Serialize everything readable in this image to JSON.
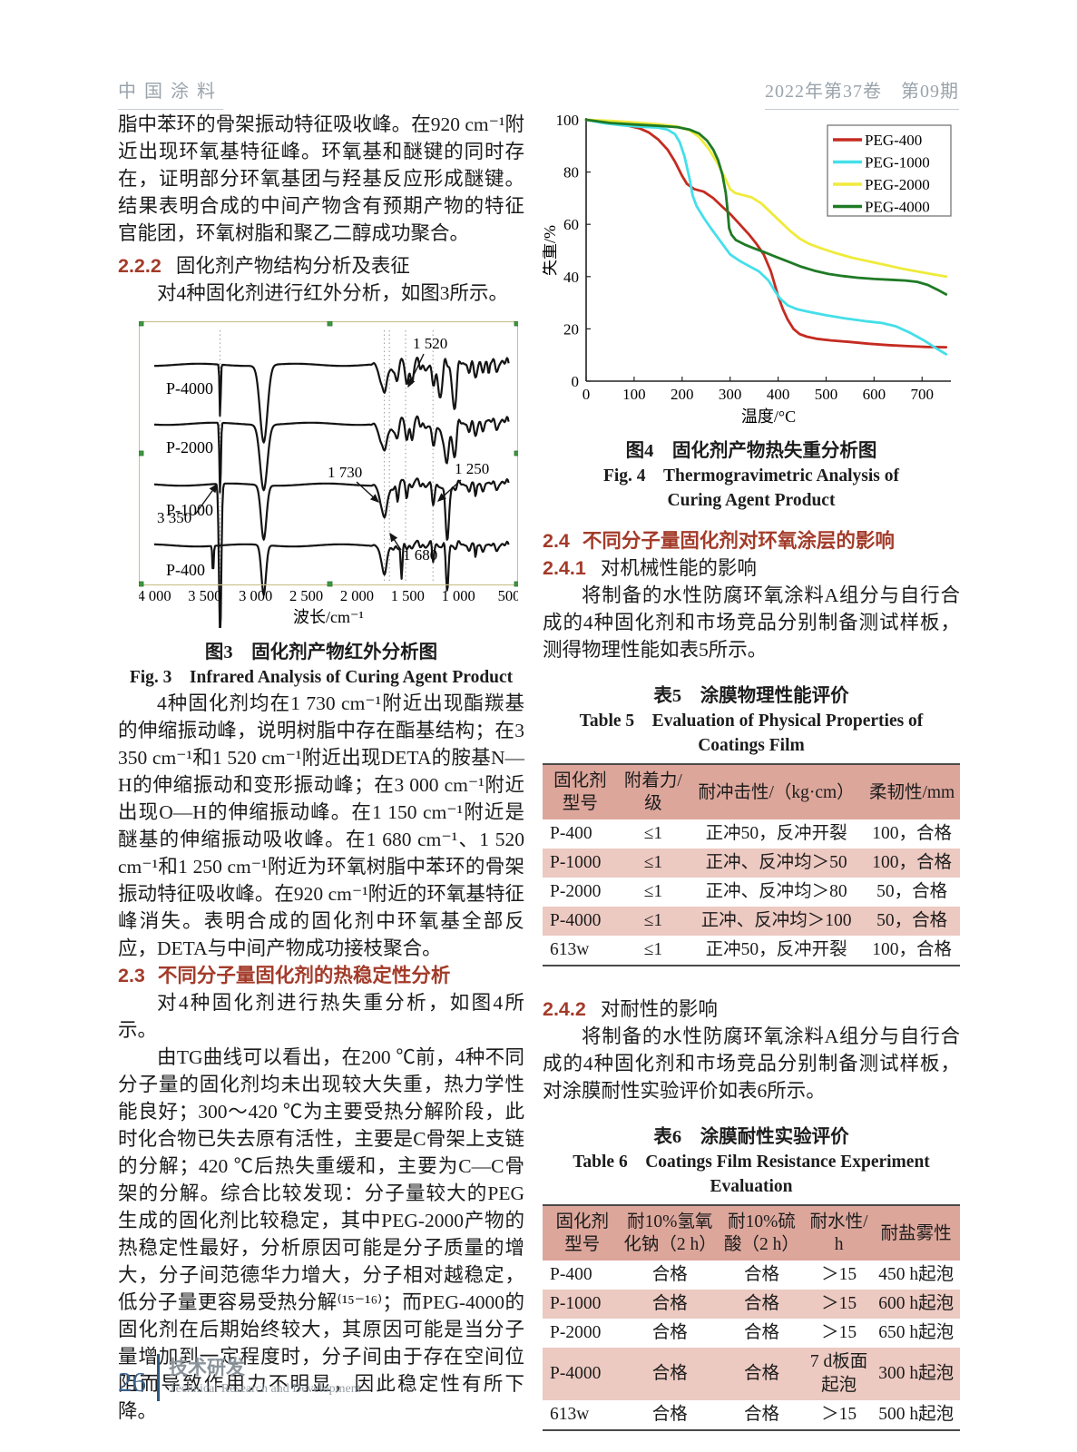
{
  "header": {
    "journal": "中国涂料",
    "issue": "2022年第37卷　第09期"
  },
  "footer": {
    "page_number": "26",
    "section_cn": "技术研发",
    "section_en": "Technical Research and Development"
  },
  "left_column": {
    "para1": "脂中苯环的骨架振动特征吸收峰。在920 cm⁻¹附近出现环氧基特征峰。环氧基和醚键的同时存在，证明部分环氧基团与羟基反应形成醚键。结果表明合成的中间产物含有预期产物的特征官能团，环氧树脂和聚乙二醇成功聚合。",
    "heading_222": {
      "num": "2.2.2",
      "title": "固化剂产物结构分析及表征"
    },
    "para2": "对4种固化剂进行红外分析，如图3所示。",
    "figure3": {
      "caption_cn": "图3　固化剂产物红外分析图",
      "caption_en": "Fig. 3　Infrared Analysis of Curing Agent Product"
    },
    "para3": "4种固化剂均在1 730 cm⁻¹附近出现酯羰基的伸缩振动峰，说明树脂中存在酯基结构；在3 350 cm⁻¹和1 520 cm⁻¹附近出现DETA的胺基N—H的伸缩振动和变形振动峰；在3 000 cm⁻¹附近出现O—H的伸缩振动峰。在1 150 cm⁻¹附近是醚基的伸缩振动吸收峰。在1 680 cm⁻¹、1 520 cm⁻¹和1 250 cm⁻¹附近为环氧树脂中苯环的骨架振动特征吸收峰。在920 cm⁻¹附近的环氧基特征峰消失。表明合成的固化剂中环氧基全部反应，DETA与中间产物成功接枝聚合。",
    "heading_23": {
      "num": "2.3",
      "title": "不同分子量固化剂的热稳定性分析"
    },
    "para4": "对4种固化剂进行热失重分析，如图4所示。",
    "para5": "由TG曲线可以看出，在200 ℃前，4种不同分子量的固化剂均未出现较大失重，热力学性能良好；300～420 ℃为主要受热分解阶段，此时化合物已失去原有活性，主要是C骨架上支链的分解；420 ℃后热失重缓和，主要为C—C骨架的分解。综合比较发现：分子量较大的PEG生成的固化剂比较稳定，其中PEG-2000产物的热稳定性最好，分析原因可能是分子质量的增大，分子间范德华力增大，分子相对越稳定，低分子量更容易受热分解⁽¹⁵⁻¹⁶⁾；而PEG-4000的固化剂在后期始终较大，其原因可能是当分子量增加到一定程度时，分子间由于存在空间位阻而导致作用力不明显，因此稳定性有所下降。"
  },
  "right_column": {
    "figure4": {
      "caption_cn": "图4　固化剂产物热失重分析图",
      "caption_en": "Fig. 4　Thermogravimetric Analysis of Curing Agent Product"
    },
    "heading_24": {
      "num": "2.4",
      "title": "不同分子量固化剂对环氧涂层的影响"
    },
    "heading_241": {
      "num": "2.4.1",
      "title": "对机械性能的影响"
    },
    "para1": "将制备的水性防腐环氧涂料A组分与自行合成的4种固化剂和市场竞品分别制备测试样板，测得物理性能如表5所示。",
    "table5": {
      "title_cn": "表5　涂膜物理性能评价",
      "title_en": "Table 5　Evaluation of Physical Properties of Coatings Film",
      "headers": [
        "固化剂\n型号",
        "附着力/级",
        "耐冲击性/（kg·cm）",
        "柔韧性/mm"
      ],
      "rows": [
        [
          "P-400",
          "≤1",
          "正冲50，反冲开裂",
          "100，合格"
        ],
        [
          "P-1000",
          "≤1",
          "正冲、反冲均＞50",
          "100，合格"
        ],
        [
          "P-2000",
          "≤1",
          "正冲、反冲均＞80",
          "50，合格"
        ],
        [
          "P-4000",
          "≤1",
          "正冲、反冲均＞100",
          "50，合格"
        ],
        [
          "613w",
          "≤1",
          "正冲50，反冲开裂",
          "100，合格"
        ]
      ]
    },
    "heading_242": {
      "num": "2.4.2",
      "title": "对耐性的影响"
    },
    "para2": "将制备的水性防腐环氧涂料A组分与自行合成的4种固化剂和市场竞品分别制备测试样板，对涂膜耐性实验评价如表6所示。",
    "table6": {
      "title_cn": "表6　涂膜耐性实验评价",
      "title_en": "Table 6　Coatings Film Resistance Experiment Evaluation",
      "headers": [
        "固化剂\n型号",
        "耐10%氢氧\n化钠（2 h）",
        "耐10%硫\n酸（2 h）",
        "耐水性/\nh",
        "耐盐雾性"
      ],
      "rows": [
        [
          "P-400",
          "合格",
          "合格",
          "＞15",
          "450 h起泡"
        ],
        [
          "P-1000",
          "合格",
          "合格",
          "＞15",
          "600 h起泡"
        ],
        [
          "P-2000",
          "合格",
          "合格",
          "＞15",
          "650 h起泡"
        ],
        [
          "P-4000",
          "合格",
          "合格",
          "7 d板面起泡",
          "300 h起泡"
        ],
        [
          "613w",
          "合格",
          "合格",
          "＞15",
          "500 h起泡"
        ]
      ]
    }
  },
  "chart_data": [
    {
      "type": "line",
      "title": "图4 固化剂产物热失重分析图 (TG curves)",
      "xlabel": "温度/°C",
      "ylabel": "失重/%",
      "xlim": [
        0,
        760
      ],
      "ylim": [
        0,
        100
      ],
      "x_ticks": [
        0,
        100,
        200,
        300,
        400,
        500,
        600,
        700
      ],
      "y_ticks": [
        0,
        20,
        40,
        60,
        80,
        100
      ],
      "grid": false,
      "legend_position": "top-right",
      "series": [
        {
          "name": "PEG-400",
          "color": "#c52b20",
          "points": [
            [
              0,
              100
            ],
            [
              30,
              99.6
            ],
            [
              60,
              98.8
            ],
            [
              90,
              97.6
            ],
            [
              110,
              96.8
            ],
            [
              130,
              95.2
            ],
            [
              150,
              92.5
            ],
            [
              170,
              88.5
            ],
            [
              185,
              84
            ],
            [
              200,
              78.5
            ],
            [
              210,
              75.5
            ],
            [
              225,
              73.5
            ],
            [
              245,
              72.5
            ],
            [
              265,
              70
            ],
            [
              285,
              66.5
            ],
            [
              300,
              64
            ],
            [
              320,
              60
            ],
            [
              340,
              56
            ],
            [
              355,
              52.5
            ],
            [
              370,
              48.5
            ],
            [
              385,
              42
            ],
            [
              400,
              32.5
            ],
            [
              410,
              27.5
            ],
            [
              420,
              23.5
            ],
            [
              432,
              20
            ],
            [
              445,
              18
            ],
            [
              460,
              17
            ],
            [
              480,
              16.2
            ],
            [
              510,
              15.6
            ],
            [
              550,
              15
            ],
            [
              590,
              14.3
            ],
            [
              630,
              13.8
            ],
            [
              670,
              13.4
            ],
            [
              710,
              13.1
            ],
            [
              750,
              13
            ]
          ]
        },
        {
          "name": "PEG-1000",
          "color": "#44dfe9",
          "points": [
            [
              0,
              100
            ],
            [
              40,
              98.6
            ],
            [
              80,
              97.8
            ],
            [
              120,
              97.3
            ],
            [
              150,
              97
            ],
            [
              170,
              96.2
            ],
            [
              185,
              94.5
            ],
            [
              195,
              91.5
            ],
            [
              205,
              86
            ],
            [
              215,
              78
            ],
            [
              222,
              71
            ],
            [
              230,
              67
            ],
            [
              245,
              62.5
            ],
            [
              260,
              58.5
            ],
            [
              280,
              53.5
            ],
            [
              300,
              48.5
            ],
            [
              320,
              46
            ],
            [
              340,
              44
            ],
            [
              360,
              42
            ],
            [
              380,
              38.5
            ],
            [
              395,
              34
            ],
            [
              405,
              31.5
            ],
            [
              420,
              29
            ],
            [
              440,
              27.5
            ],
            [
              470,
              26.3
            ],
            [
              500,
              25.2
            ],
            [
              540,
              24
            ],
            [
              580,
              23
            ],
            [
              615,
              22.3
            ],
            [
              645,
              21
            ],
            [
              675,
              18.5
            ],
            [
              705,
              15.5
            ],
            [
              730,
              12.5
            ],
            [
              750,
              10.3
            ]
          ]
        },
        {
          "name": "PEG-2000",
          "color": "#efeb3c",
          "points": [
            [
              0,
              100
            ],
            [
              50,
              99.6
            ],
            [
              100,
              99
            ],
            [
              150,
              98.3
            ],
            [
              190,
              97.4
            ],
            [
              215,
              96
            ],
            [
              235,
              93.5
            ],
            [
              255,
              89
            ],
            [
              275,
              83
            ],
            [
              290,
              77.5
            ],
            [
              300,
              73.5
            ],
            [
              310,
              72
            ],
            [
              325,
              71.3
            ],
            [
              345,
              70.3
            ],
            [
              365,
              68
            ],
            [
              385,
              64.5
            ],
            [
              405,
              61
            ],
            [
              425,
              57.5
            ],
            [
              445,
              54.5
            ],
            [
              465,
              52.5
            ],
            [
              490,
              50.8
            ],
            [
              520,
              49
            ],
            [
              555,
              47.2
            ],
            [
              590,
              45.8
            ],
            [
              625,
              44.4
            ],
            [
              660,
              43
            ],
            [
              695,
              41.8
            ],
            [
              725,
              40.8
            ],
            [
              750,
              40
            ]
          ]
        },
        {
          "name": "PEG-4000",
          "color": "#1f7a25",
          "points": [
            [
              0,
              100
            ],
            [
              50,
              98.8
            ],
            [
              100,
              98.2
            ],
            [
              150,
              97.7
            ],
            [
              190,
              97.2
            ],
            [
              215,
              96.3
            ],
            [
              235,
              94.8
            ],
            [
              252,
              92
            ],
            [
              265,
              88.5
            ],
            [
              275,
              84.5
            ],
            [
              284,
              79
            ],
            [
              291,
              72
            ],
            [
              295,
              65
            ],
            [
              298,
              58.5
            ],
            [
              303,
              56
            ],
            [
              312,
              54
            ],
            [
              330,
              52.3
            ],
            [
              350,
              50.8
            ],
            [
              372,
              49.3
            ],
            [
              395,
              47.6
            ],
            [
              420,
              45.8
            ],
            [
              448,
              43.8
            ],
            [
              475,
              42.3
            ],
            [
              505,
              41
            ],
            [
              535,
              40.2
            ],
            [
              565,
              39.6
            ],
            [
              600,
              39.1
            ],
            [
              635,
              38.8
            ],
            [
              665,
              38.5
            ],
            [
              690,
              38
            ],
            [
              712,
              36.8
            ],
            [
              732,
              35
            ],
            [
              750,
              33.2
            ]
          ]
        }
      ]
    },
    {
      "type": "line",
      "title": "图3 固化剂产物红外分析图 (IR transmittance spectra, qualitative)",
      "xlabel": "波长/cm⁻¹",
      "x_ticks": [
        "4 000",
        "3 500",
        "3 000",
        "2 500",
        "2 000",
        "1 500",
        "1 000",
        "500"
      ],
      "x_axis": "wavenumber decreasing 4000→500 cm⁻¹",
      "series_labels": [
        "P-4000",
        "P-2000",
        "P-1000",
        "P-400"
      ],
      "peak_annotations": [
        "1 520",
        "3 350",
        "1 730",
        "1 680",
        "1 250"
      ]
    }
  ]
}
